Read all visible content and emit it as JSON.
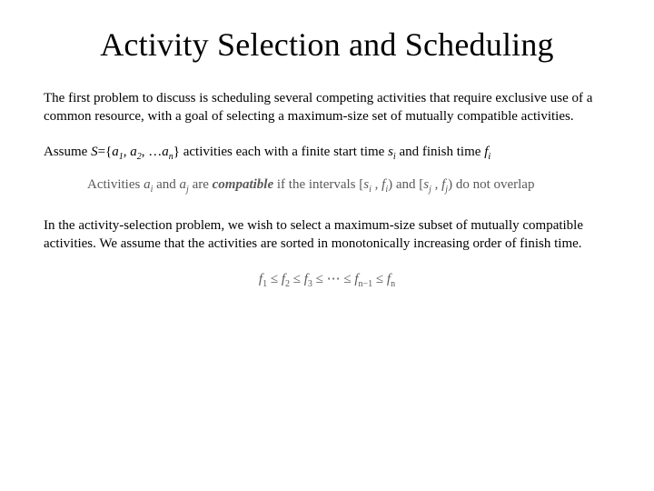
{
  "title": "Activity Selection and Scheduling",
  "p1": "The first problem to discuss is scheduling several competing activities that require exclusive use of a common resource, with a goal of selecting a maximum-size set of mutually compatible activities.",
  "assume_prefix": "Assume ",
  "assume_S": "S",
  "assume_eq": "={",
  "assume_a": "a",
  "assume_sub1": "1",
  "assume_comma": ", ",
  "assume_sub2": "2",
  "assume_dots": "…",
  "assume_subn": "n",
  "assume_close": "}",
  "assume_mid": " activities each with a finite start time ",
  "assume_s": "s",
  "assume_si": "i",
  "assume_and": " and finish time ",
  "assume_f": "f",
  "assume_fi": "i",
  "compat_pre": "Activities ",
  "compat_ai": "a",
  "compat_i": "i",
  "compat_and": " and ",
  "compat_aj": "a",
  "compat_j": "j",
  "compat_are": " are ",
  "compat_word": "compatible",
  "compat_if": " if the intervals [",
  "compat_s": "s",
  "compat_c1": " , ",
  "compat_fp": "f",
  "compat_p1": ") and [",
  "compat_p2": ") do not overlap",
  "p3": "In the activity-selection problem, we wish to select a maximum-size subset of mutually compatible activities. We assume that the activities are sorted in monotonically increasing order of finish time.",
  "math_f": "f",
  "math_1": "1",
  "math_le": " ≤ ",
  "math_2": "2",
  "math_3": "3",
  "math_dots": " ≤ ⋯ ≤ ",
  "math_nm1": "n−1",
  "math_n": "n",
  "colors": {
    "text": "#000000",
    "math": "#595959",
    "background": "#ffffff"
  },
  "fontsize": {
    "title": 36,
    "body": 15,
    "sub": 10
  }
}
